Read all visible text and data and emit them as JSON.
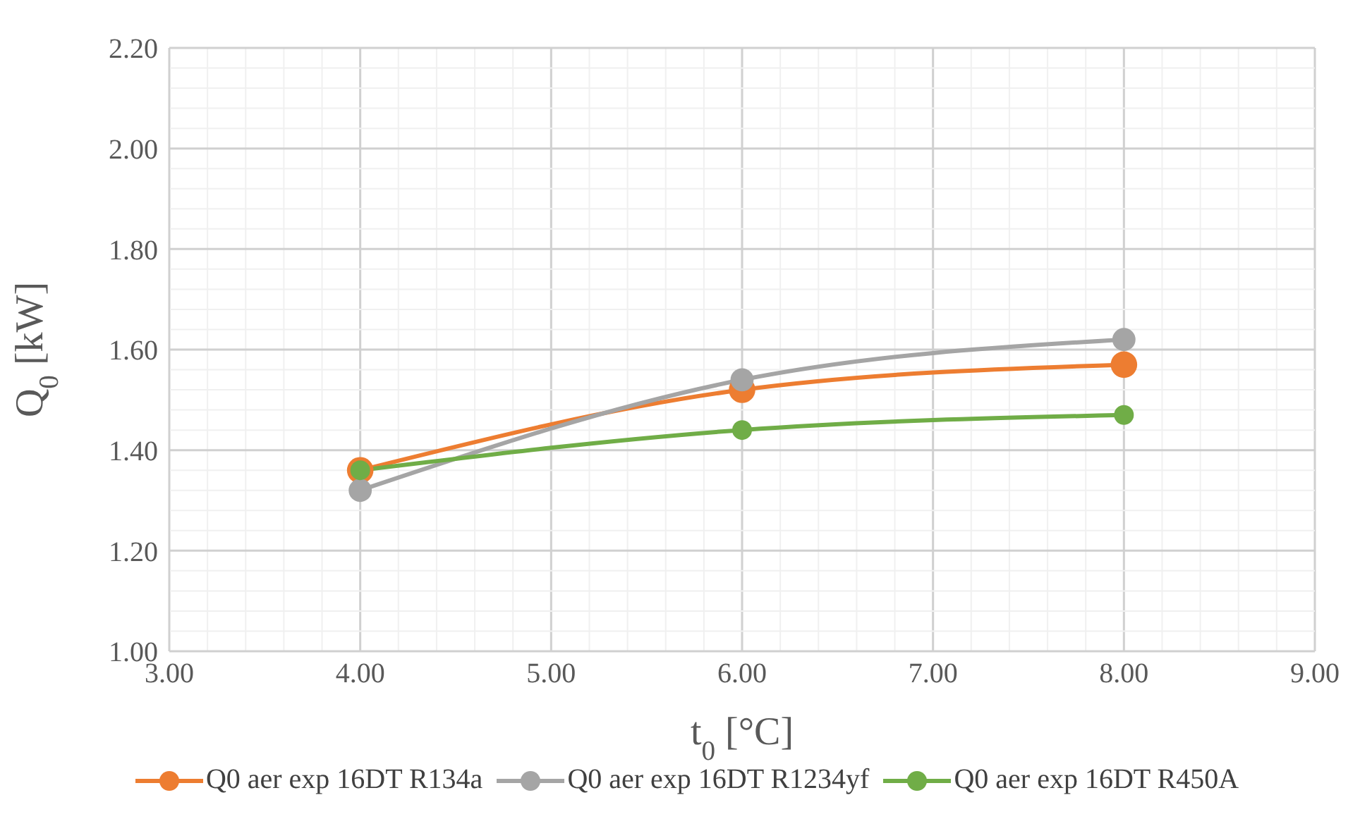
{
  "chart_data": {
    "type": "line",
    "xlabel": "t$_{0}$ [°C]",
    "ylabel": "Q$_{0}$ [kW]",
    "x": [
      4,
      6,
      8
    ],
    "series": [
      {
        "name": "Q0 aer exp 16DT R134a",
        "color": "#ed7d31",
        "values": [
          1.36,
          1.52,
          1.57
        ]
      },
      {
        "name": "Q0 aer exp 16DT R1234yf",
        "color": "#a5a5a5",
        "values": [
          1.32,
          1.54,
          1.62
        ]
      },
      {
        "name": "Q0 aer exp 16DT R450A",
        "color": "#70ad47",
        "values": [
          1.36,
          1.44,
          1.47
        ]
      }
    ],
    "xlim": [
      3,
      9
    ],
    "xticks": [
      {
        "value": 3,
        "label": "3.00"
      },
      {
        "value": 3.2,
        "label": null
      },
      {
        "value": 3.4,
        "label": null
      },
      {
        "value": 3.6,
        "label": null
      },
      {
        "value": 3.8,
        "label": null
      },
      {
        "value": 4,
        "label": "4.00"
      },
      {
        "value": 4.2,
        "label": null
      },
      {
        "value": 4.4,
        "label": null
      },
      {
        "value": 4.6,
        "label": null
      },
      {
        "value": 4.8,
        "label": null
      },
      {
        "value": 5,
        "label": "5.00"
      },
      {
        "value": 5.2,
        "label": null
      },
      {
        "value": 5.4,
        "label": null
      },
      {
        "value": 5.6,
        "label": null
      },
      {
        "value": 5.8,
        "label": null
      },
      {
        "value": 6,
        "label": "6.00"
      },
      {
        "value": 6.2,
        "label": null
      },
      {
        "value": 6.4,
        "label": null
      },
      {
        "value": 6.6,
        "label": null
      },
      {
        "value": 6.8,
        "label": null
      },
      {
        "value": 7,
        "label": "7.00"
      },
      {
        "value": 7.2,
        "label": null
      },
      {
        "value": 7.4,
        "label": null
      },
      {
        "value": 7.6,
        "label": null
      },
      {
        "value": 7.8,
        "label": null
      },
      {
        "value": 8,
        "label": "8.00"
      },
      {
        "value": 8.2,
        "label": null
      },
      {
        "value": 8.4,
        "label": null
      },
      {
        "value": 8.6,
        "label": null
      },
      {
        "value": 8.8,
        "label": null
      },
      {
        "value": 9,
        "label": "9.00"
      }
    ],
    "ylim": [
      1,
      2.2
    ],
    "yticks": [
      {
        "value": 1,
        "label": "1.00"
      },
      {
        "value": 1.04,
        "label": null
      },
      {
        "value": 1.08,
        "label": null
      },
      {
        "value": 1.12,
        "label": null
      },
      {
        "value": 1.16,
        "label": null
      },
      {
        "value": 1.2,
        "label": "1.20"
      },
      {
        "value": 1.24,
        "label": null
      },
      {
        "value": 1.28,
        "label": null
      },
      {
        "value": 1.32,
        "label": null
      },
      {
        "value": 1.36,
        "label": null
      },
      {
        "value": 1.4,
        "label": "1.40"
      },
      {
        "value": 1.44,
        "label": null
      },
      {
        "value": 1.48,
        "label": null
      },
      {
        "value": 1.52,
        "label": null
      },
      {
        "value": 1.56,
        "label": null
      },
      {
        "value": 1.6,
        "label": "1.60"
      },
      {
        "value": 1.64,
        "label": null
      },
      {
        "value": 1.68,
        "label": null
      },
      {
        "value": 1.72,
        "label": null
      },
      {
        "value": 1.76,
        "label": null
      },
      {
        "value": 1.8,
        "label": "1.80"
      },
      {
        "value": 1.84,
        "label": null
      },
      {
        "value": 1.88,
        "label": null
      },
      {
        "value": 1.92,
        "label": null
      },
      {
        "value": 1.96,
        "label": null
      },
      {
        "value": 2,
        "label": "2.00"
      },
      {
        "value": 2.04,
        "label": null
      },
      {
        "value": 2.08,
        "label": null
      },
      {
        "value": 2.12,
        "label": null
      },
      {
        "value": 2.16,
        "label": null
      },
      {
        "value": 2.2,
        "label": "2.20"
      }
    ],
    "grid": true,
    "legend": "bottom",
    "marker": "circle",
    "line_style": "solid"
  }
}
